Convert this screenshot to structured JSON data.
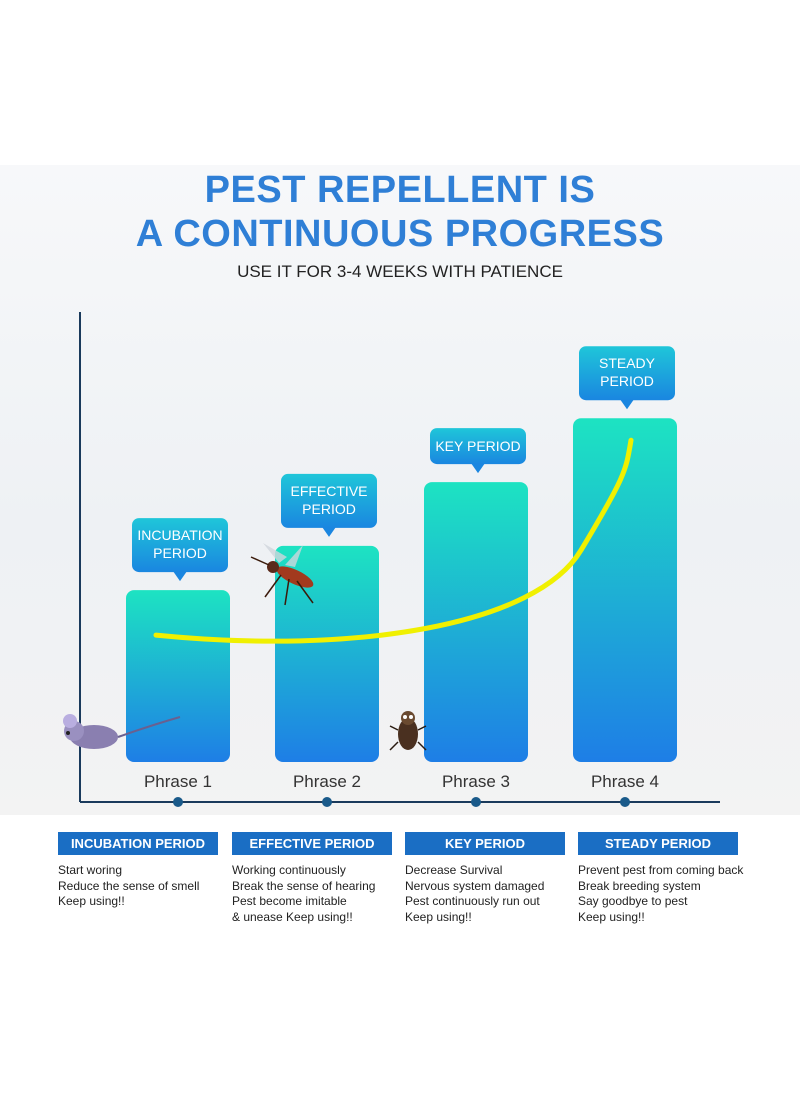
{
  "header": {
    "title_line1": "PEST REPELLENT IS",
    "title_line2": "A CONTINUOUS PROGRESS",
    "subtitle": "USE IT FOR 3-4 WEEKS WITH PATIENCE"
  },
  "colors": {
    "title": "#2f7fd6",
    "bar_top": "#1de3c2",
    "bar_bottom": "#1e7ee6",
    "label_box": "#1aa3e0",
    "curve": "#f0f000",
    "axis": "#1a3a5c",
    "info_header": "#1a6ec4"
  },
  "chart_data": {
    "type": "bar",
    "categories": [
      "Phrase 1",
      "Phrase 2",
      "Phrase 3",
      "Phrase 4"
    ],
    "values": [
      35,
      44,
      57,
      70
    ],
    "ylim": [
      0,
      90
    ],
    "bar_labels": [
      [
        "INCUBATION",
        "PERIOD"
      ],
      [
        "EFFECTIVE",
        "PERIOD"
      ],
      [
        "KEY PERIOD"
      ],
      [
        "STEADY",
        "PERIOD"
      ]
    ],
    "trend_curve": true,
    "grid": false
  },
  "info": [
    {
      "header": "INCUBATION PERIOD",
      "lines": [
        "Start woring",
        "Reduce the sense of smell",
        "Keep using!!"
      ]
    },
    {
      "header": "EFFECTIVE PERIOD",
      "lines": [
        "Working continuously",
        "Break the sense of hearing",
        "Pest become imitable",
        "& unease Keep using!!"
      ]
    },
    {
      "header": "KEY PERIOD",
      "lines": [
        "Decrease Survival",
        "Nervous system damaged",
        "Pest continuously run out",
        "Keep using!!"
      ]
    },
    {
      "header": "STEADY PERIOD",
      "lines": [
        "Prevent pest from coming back",
        "Break breeding system",
        "Say goodbye to pest",
        "Keep using!!"
      ]
    }
  ],
  "icons": [
    "mouse-icon",
    "mosquito-icon",
    "cockroach-icon"
  ]
}
